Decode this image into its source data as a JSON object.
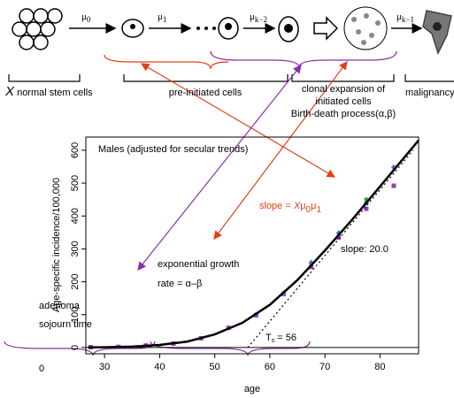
{
  "diagram": {
    "rates": [
      [
        "μ",
        "0"
      ],
      [
        "μ",
        "1"
      ],
      [
        "μ",
        "k−2"
      ],
      [
        "μ",
        "k−1"
      ]
    ],
    "stages": [
      {
        "prefix": "X",
        "label": " normal stem cells"
      },
      {
        "label": "pre-initiated cells"
      },
      {
        "lines": [
          "clonal expansion of",
          "initiated cells",
          "Birth-death process(α,β)"
        ]
      },
      {
        "label": "malignancy"
      }
    ]
  },
  "chart_data": {
    "type": "scatter",
    "title": "Males (adjusted for secular trends)",
    "x_label": "age",
    "y_label": "Age-specific incidence/100,000",
    "xlim": [
      26.6,
      87
    ],
    "ylim": [
      -19,
      640
    ],
    "xticks": [
      30,
      40,
      50,
      60,
      70,
      80
    ],
    "yticks": [
      0,
      100,
      200,
      300,
      400,
      500,
      600
    ],
    "series": [
      {
        "color": "#9a3fae",
        "marker": "square",
        "x": [
          27.5,
          32.5,
          37.5,
          42.5,
          47.5,
          52.5,
          57.5,
          62.5,
          67.5,
          72.5,
          77.5,
          82.5
        ],
        "values": [
          1,
          2,
          6,
          12,
          28,
          60,
          98,
          163,
          245,
          335,
          422,
          492
        ]
      },
      {
        "color": "#3b78d8",
        "marker": "diamond",
        "x": [
          57.5,
          62.5,
          67.5,
          72.5,
          77.5,
          82.5
        ],
        "values": [
          100,
          165,
          258,
          348,
          440,
          548
        ]
      },
      {
        "color": "#2ea84a",
        "marker": "circle",
        "x": [
          77.5
        ],
        "values": [
          450
        ]
      },
      {
        "color": "#000000",
        "marker": "line",
        "x": [
          27,
          30,
          35,
          40,
          45,
          50,
          55,
          60,
          65,
          70,
          75,
          80,
          85,
          87
        ],
        "values": [
          0.5,
          1,
          3,
          8,
          18,
          40,
          75,
          130,
          205,
          295,
          390,
          490,
          590,
          630
        ]
      },
      {
        "color": "#000000",
        "marker": "dotted",
        "x": [
          56,
          86
        ],
        "values": [
          0,
          600
        ]
      }
    ],
    "annotations": {
      "slope_fit": "slope: 20.0",
      "ts": [
        "T",
        "s",
        " = 56"
      ],
      "origin": "0",
      "slope_formula": [
        "slope = ",
        "X",
        "μ",
        "0",
        "μ",
        "1"
      ],
      "growth": [
        "exponential growth",
        "rate = α–β"
      ],
      "sojourn": [
        "adenoma",
        "sojourn time"
      ]
    }
  }
}
